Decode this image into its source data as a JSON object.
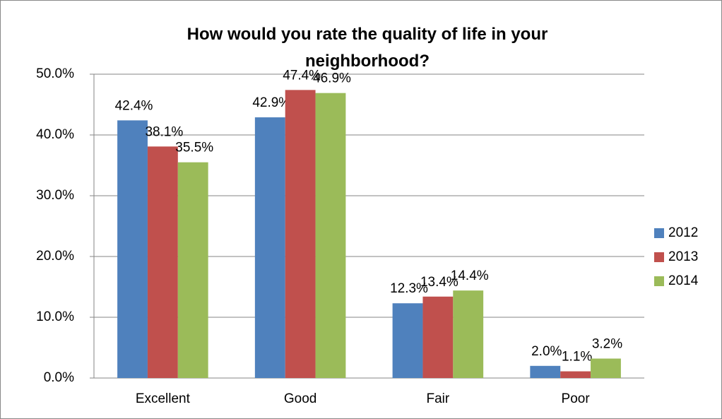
{
  "chart_data": {
    "type": "bar",
    "title": "How would you rate the quality of life in your neighborhood?",
    "categories": [
      "Excellent",
      "Good",
      "Fair",
      "Poor"
    ],
    "series": [
      {
        "name": "2012",
        "color": "#4f81bd",
        "values": [
          42.4,
          42.9,
          12.3,
          2.0
        ],
        "value_labels": [
          "42.4%",
          "42.9%",
          "12.3%",
          "2.0%"
        ]
      },
      {
        "name": "2013",
        "color": "#c0504d",
        "values": [
          38.1,
          47.4,
          13.4,
          1.1
        ],
        "value_labels": [
          "38.1%",
          "47.4%",
          "13.4%",
          "1.1%"
        ]
      },
      {
        "name": "2014",
        "color": "#9bbb59",
        "values": [
          35.5,
          46.9,
          14.4,
          3.2
        ],
        "value_labels": [
          "35.5%",
          "46.9%",
          "14.4%",
          "3.2%"
        ]
      }
    ],
    "ylim": [
      0,
      50
    ],
    "yticks": [
      {
        "value": 0,
        "label": "0.0%"
      },
      {
        "value": 10,
        "label": "10.0%"
      },
      {
        "value": 20,
        "label": "20.0%"
      },
      {
        "value": 30,
        "label": "30.0%"
      },
      {
        "value": 40,
        "label": "40.0%"
      },
      {
        "value": 50,
        "label": "50.0%"
      }
    ],
    "grid": true,
    "legend": "right"
  }
}
